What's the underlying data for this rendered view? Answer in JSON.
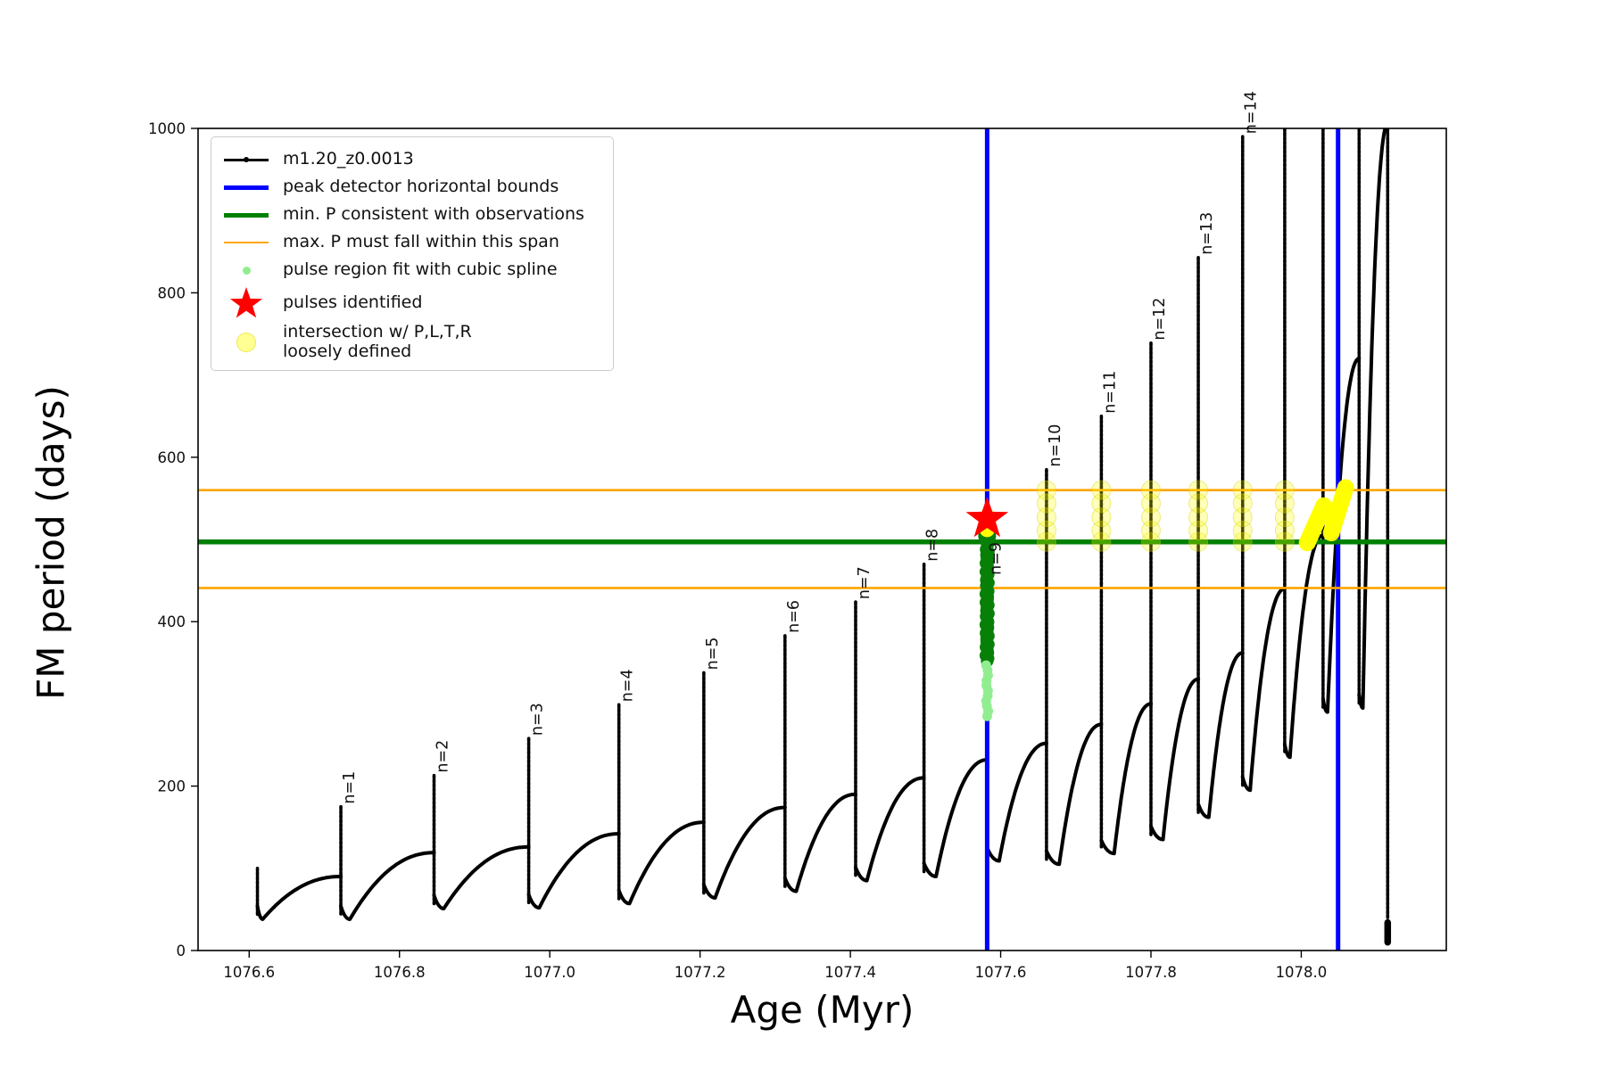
{
  "figure": {
    "kind": "matplotlib-style line chart",
    "background": "#ffffff"
  },
  "axes": {
    "x": {
      "label": "Age (Myr)",
      "min": 1076.532,
      "max": 1078.193,
      "ticks": [
        1076.6,
        1076.8,
        1077.0,
        1077.2,
        1077.4,
        1077.6,
        1077.8,
        1078.0
      ],
      "tick_labels": [
        "1076.6",
        "1076.8",
        "1077.0",
        "1077.2",
        "1077.4",
        "1077.6",
        "1077.8",
        "1078.0"
      ]
    },
    "y": {
      "label": "FM period (days)",
      "min": 0,
      "max": 1000,
      "ticks": [
        0,
        200,
        400,
        600,
        800,
        1000
      ],
      "tick_labels": [
        "0",
        "200",
        "400",
        "600",
        "800",
        "1000"
      ]
    }
  },
  "legend": {
    "items": [
      {
        "key": "series",
        "label": "m1.20_z0.0013"
      },
      {
        "key": "peak-bounds",
        "label": "peak detector horizontal bounds"
      },
      {
        "key": "min-p",
        "label": "min. P consistent with observations"
      },
      {
        "key": "max-p",
        "label": "max. P must fall within this span"
      },
      {
        "key": "spline",
        "label": "pulse region fit with cubic spline"
      },
      {
        "key": "pulses",
        "label": "pulses identified"
      },
      {
        "key": "intersect",
        "label": "intersection w/ P,L,T,R",
        "label2": "loosely defined"
      }
    ]
  },
  "colors": {
    "series": "#000000",
    "peak_bounds": "#0000ff",
    "min_p": "#008000",
    "max_p": "#ffa500",
    "spline_light": "#90ee90",
    "spline_dark": "#088008",
    "pulse_star": "#ff0000",
    "intersection": "#ffff00"
  },
  "chart_data": {
    "type": "line",
    "series_name": "m1.20_z0.0013",
    "title": "",
    "xlabel": "Age (Myr)",
    "ylabel": "FM period (days)",
    "xlim": [
      1076.532,
      1078.193
    ],
    "ylim": [
      0,
      1000
    ],
    "grid": false,
    "legend_position": "upper left",
    "vlines": {
      "label": "peak detector horizontal bounds",
      "ages": [
        1077.582,
        1078.049
      ]
    },
    "hlines": {
      "min_p_value": 497,
      "max_p_span": [
        441,
        560
      ]
    },
    "peaks": [
      {
        "n": 1,
        "age": 1076.722,
        "period": 175
      },
      {
        "n": 2,
        "age": 1076.846,
        "period": 213
      },
      {
        "n": 3,
        "age": 1076.972,
        "period": 258
      },
      {
        "n": 4,
        "age": 1077.092,
        "period": 299
      },
      {
        "n": 5,
        "age": 1077.205,
        "period": 338
      },
      {
        "n": 6,
        "age": 1077.313,
        "period": 383
      },
      {
        "n": 7,
        "age": 1077.407,
        "period": 424
      },
      {
        "n": 8,
        "age": 1077.498,
        "period": 470
      },
      {
        "n": 9,
        "age": 1077.582,
        "period": 524
      },
      {
        "n": 10,
        "age": 1077.661,
        "period": 585
      },
      {
        "n": 11,
        "age": 1077.734,
        "period": 650
      },
      {
        "n": 12,
        "age": 1077.8,
        "period": 739
      },
      {
        "n": 13,
        "age": 1077.863,
        "period": 843
      },
      {
        "n": 14,
        "age": 1077.922,
        "period": 990
      }
    ],
    "pulses": [
      {
        "label": null,
        "age": 1076.611,
        "peak": 100,
        "shoulder": null,
        "dip": 38,
        "dipdx": 0.007
      },
      {
        "label": "n=1",
        "age": 1076.722,
        "peak": 175,
        "shoulder": 90,
        "dip": 38,
        "dipdx": 0.012
      },
      {
        "label": "n=2",
        "age": 1076.846,
        "peak": 213,
        "shoulder": 119,
        "dip": 51,
        "dipdx": 0.013
      },
      {
        "label": "n=3",
        "age": 1076.972,
        "peak": 258,
        "shoulder": 126,
        "dip": 52,
        "dipdx": 0.014
      },
      {
        "label": "n=4",
        "age": 1077.092,
        "peak": 299,
        "shoulder": 142,
        "dip": 57,
        "dipdx": 0.014
      },
      {
        "label": "n=5",
        "age": 1077.205,
        "peak": 338,
        "shoulder": 156,
        "dip": 64,
        "dipdx": 0.015
      },
      {
        "label": "n=6",
        "age": 1077.313,
        "peak": 383,
        "shoulder": 174,
        "dip": 72,
        "dipdx": 0.015
      },
      {
        "label": "n=7",
        "age": 1077.407,
        "peak": 424,
        "shoulder": 190,
        "dip": 85,
        "dipdx": 0.015
      },
      {
        "label": "n=8",
        "age": 1077.498,
        "peak": 470,
        "shoulder": 210,
        "dip": 90,
        "dipdx": 0.016
      },
      {
        "label": "n=9",
        "age": 1077.582,
        "peak": 524,
        "shoulder": 232,
        "dip": 109,
        "dipdx": 0.016
      },
      {
        "label": "n=10",
        "age": 1077.661,
        "peak": 585,
        "shoulder": 252,
        "dip": 105,
        "dipdx": 0.017
      },
      {
        "label": "n=11",
        "age": 1077.734,
        "peak": 650,
        "shoulder": 275,
        "dip": 118,
        "dipdx": 0.017
      },
      {
        "label": "n=12",
        "age": 1077.8,
        "peak": 739,
        "shoulder": 300,
        "dip": 135,
        "dipdx": 0.016
      },
      {
        "label": "n=13",
        "age": 1077.863,
        "peak": 843,
        "shoulder": 330,
        "dip": 162,
        "dipdx": 0.014
      },
      {
        "label": "n=14",
        "age": 1077.922,
        "peak": 990,
        "shoulder": 362,
        "dip": 195,
        "dipdx": 0.01
      },
      {
        "label": null,
        "age": 1077.978,
        "peak": 1005,
        "shoulder": 440,
        "dip": 235,
        "dipdx": 0.007
      },
      {
        "label": null,
        "age": 1078.029,
        "peak": 1005,
        "shoulder": 505,
        "dip": 290,
        "dipdx": 0.006
      },
      {
        "label": null,
        "age": 1078.077,
        "peak": 1005,
        "shoulder": 720,
        "dip": 295,
        "dipdx": 0.005
      },
      {
        "label": null,
        "age": 1078.115,
        "peak": 1005,
        "shoulder": 1005,
        "dip": null,
        "drop_to": 10
      }
    ],
    "star": {
      "label": "pulses identified",
      "age": 1077.582,
      "period": 525
    },
    "spline_dark_cluster": {
      "age": 1077.582,
      "period_min": 352,
      "period_max": 504
    },
    "spline_light_cluster": {
      "age": 1077.582,
      "period_min": 285,
      "period_max": 352
    },
    "intersection_loose": {
      "ages": [
        1077.661,
        1077.734,
        1077.8,
        1077.863,
        1077.922,
        1077.978
      ],
      "periods": [
        497,
        511,
        527,
        544,
        560
      ]
    },
    "intersection_dense_streaks": [
      {
        "age0": 1078.008,
        "p0": 496,
        "age1": 1078.03,
        "p1": 541
      },
      {
        "age0": 1078.04,
        "p0": 508,
        "age1": 1078.059,
        "p1": 563
      }
    ]
  }
}
